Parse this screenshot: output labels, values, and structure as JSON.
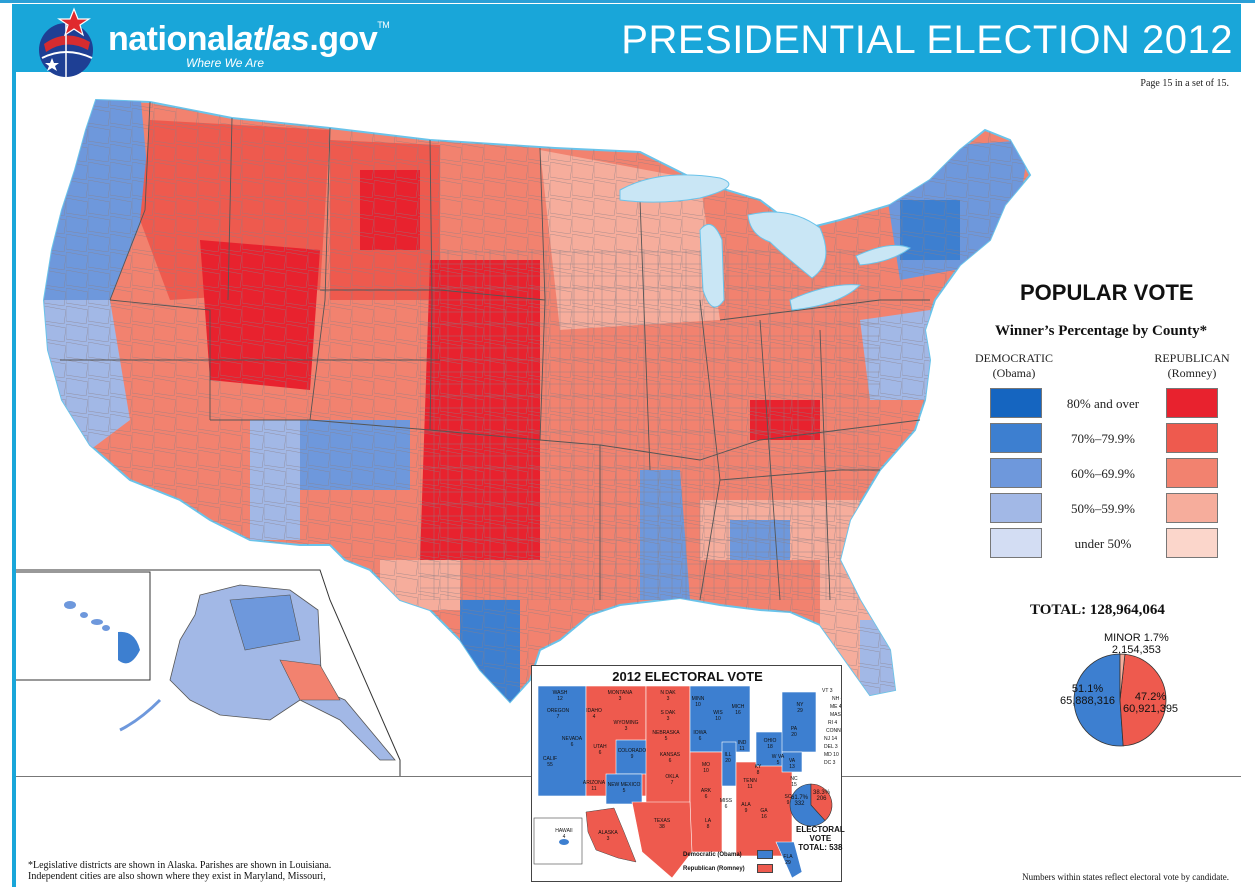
{
  "site": {
    "logo_prefix": "national",
    "logo_accent": "atlas",
    "logo_suffix": ".gov",
    "trademark": "TM",
    "tagline": "Where We Are"
  },
  "header": {
    "title": "PRESIDENTIAL ELECTION  2012",
    "page_note": "Page 15 in a set of 15."
  },
  "legend": {
    "title": "POPULAR VOTE",
    "subtitle": "Winner’s Percentage by County*",
    "democratic_header": "DEMOCRATIC",
    "democratic_candidate": "(Obama)",
    "republican_header": "REPUBLICAN",
    "republican_candidate": "(Romney)",
    "classes": [
      {
        "label": "80% and over",
        "dem_color": "#1565c0",
        "rep_color": "#e8222e"
      },
      {
        "label": "70%–79.9%",
        "dem_color": "#3d7fd0",
        "rep_color": "#ee5a4e"
      },
      {
        "label": "60%–69.9%",
        "dem_color": "#6e98dc",
        "rep_color": "#f2826f"
      },
      {
        "label": "50%–59.9%",
        "dem_color": "#a2b8e6",
        "rep_color": "#f6ad9c"
      },
      {
        "label": "under 50%",
        "dem_color": "#d3ddf3",
        "rep_color": "#fbd6cb"
      }
    ]
  },
  "totals": {
    "label": "TOTAL:  128,964,064",
    "minor_label": "MINOR 1.7%",
    "minor_votes": "2,154,353",
    "dem_pct": "51.1%",
    "dem_votes": "65,888,316",
    "rep_pct": "47.2%",
    "rep_votes": "60,921,395",
    "pie": {
      "dem": 51.1,
      "rep": 47.2,
      "minor": 1.7
    }
  },
  "electoral": {
    "title": "2012 ELECTORAL VOTE",
    "dem_pct": "61.7%",
    "dem_votes": "332",
    "rep_pct": "38.3%",
    "rep_votes": "206",
    "vote_label_1": "ELECTORAL",
    "vote_label_2": "VOTE",
    "total_label": "TOTAL:  538",
    "legend_dem": "Democratic (Obama)",
    "legend_rep": "Republican (Romney)",
    "pie": {
      "dem": 61.7,
      "rep": 38.3
    },
    "states_dem": [
      {
        "name": "WASH",
        "ev": "12"
      },
      {
        "name": "OREGON",
        "ev": "7"
      },
      {
        "name": "CALIF",
        "ev": "55"
      },
      {
        "name": "NEVADA",
        "ev": "6"
      },
      {
        "name": "COLORADO",
        "ev": "9"
      },
      {
        "name": "NEW MEXICO",
        "ev": "5"
      },
      {
        "name": "MINN",
        "ev": "10"
      },
      {
        "name": "IOWA",
        "ev": "6"
      },
      {
        "name": "WIS",
        "ev": "10"
      },
      {
        "name": "ILL",
        "ev": "20"
      },
      {
        "name": "MICH",
        "ev": "16"
      },
      {
        "name": "OHIO",
        "ev": "18"
      },
      {
        "name": "PA",
        "ev": "20"
      },
      {
        "name": "NY",
        "ev": "29"
      },
      {
        "name": "VA",
        "ev": "13"
      },
      {
        "name": "FLA",
        "ev": "29"
      },
      {
        "name": "HAWAII",
        "ev": "4"
      }
    ],
    "states_rep": [
      {
        "name": "IDAHO",
        "ev": "4"
      },
      {
        "name": "MONTANA",
        "ev": "3"
      },
      {
        "name": "WYOMING",
        "ev": "3"
      },
      {
        "name": "UTAH",
        "ev": "6"
      },
      {
        "name": "ARIZONA",
        "ev": "11"
      },
      {
        "name": "N DAK",
        "ev": "3"
      },
      {
        "name": "S DAK",
        "ev": "3"
      },
      {
        "name": "NEBRASKA",
        "ev": "5"
      },
      {
        "name": "KANSAS",
        "ev": "6"
      },
      {
        "name": "OKLA",
        "ev": "7"
      },
      {
        "name": "TEXAS",
        "ev": "38"
      },
      {
        "name": "MO",
        "ev": "10"
      },
      {
        "name": "ARK",
        "ev": "6"
      },
      {
        "name": "LA",
        "ev": "8"
      },
      {
        "name": "MISS",
        "ev": "6"
      },
      {
        "name": "ALA",
        "ev": "9"
      },
      {
        "name": "GA",
        "ev": "16"
      },
      {
        "name": "TENN",
        "ev": "11"
      },
      {
        "name": "KY",
        "ev": "8"
      },
      {
        "name": "IND",
        "ev": "11"
      },
      {
        "name": "W VA",
        "ev": "5"
      },
      {
        "name": "NC",
        "ev": "15"
      },
      {
        "name": "SC",
        "ev": "9"
      },
      {
        "name": "ALASKA",
        "ev": "3"
      }
    ],
    "east_small": [
      "VT 3",
      "NH 4",
      "ME 4",
      "MASS 11",
      "RI 4",
      "CONN 7",
      "NJ 14",
      "DEL 3",
      "MD 10",
      "DC 3"
    ]
  },
  "footnotes": {
    "left_1": "*Legislative districts are shown in Alaska. Parishes are shown in Louisiana.",
    "left_2": "Independent cities are also shown where they exist in Maryland, Missouri,",
    "right": "Numbers within states reflect electoral vote by candidate."
  },
  "map_colors": {
    "lakes": "#c9e6f5",
    "water_outline": "#6ac3ea",
    "county_border": "#8a7f86"
  }
}
